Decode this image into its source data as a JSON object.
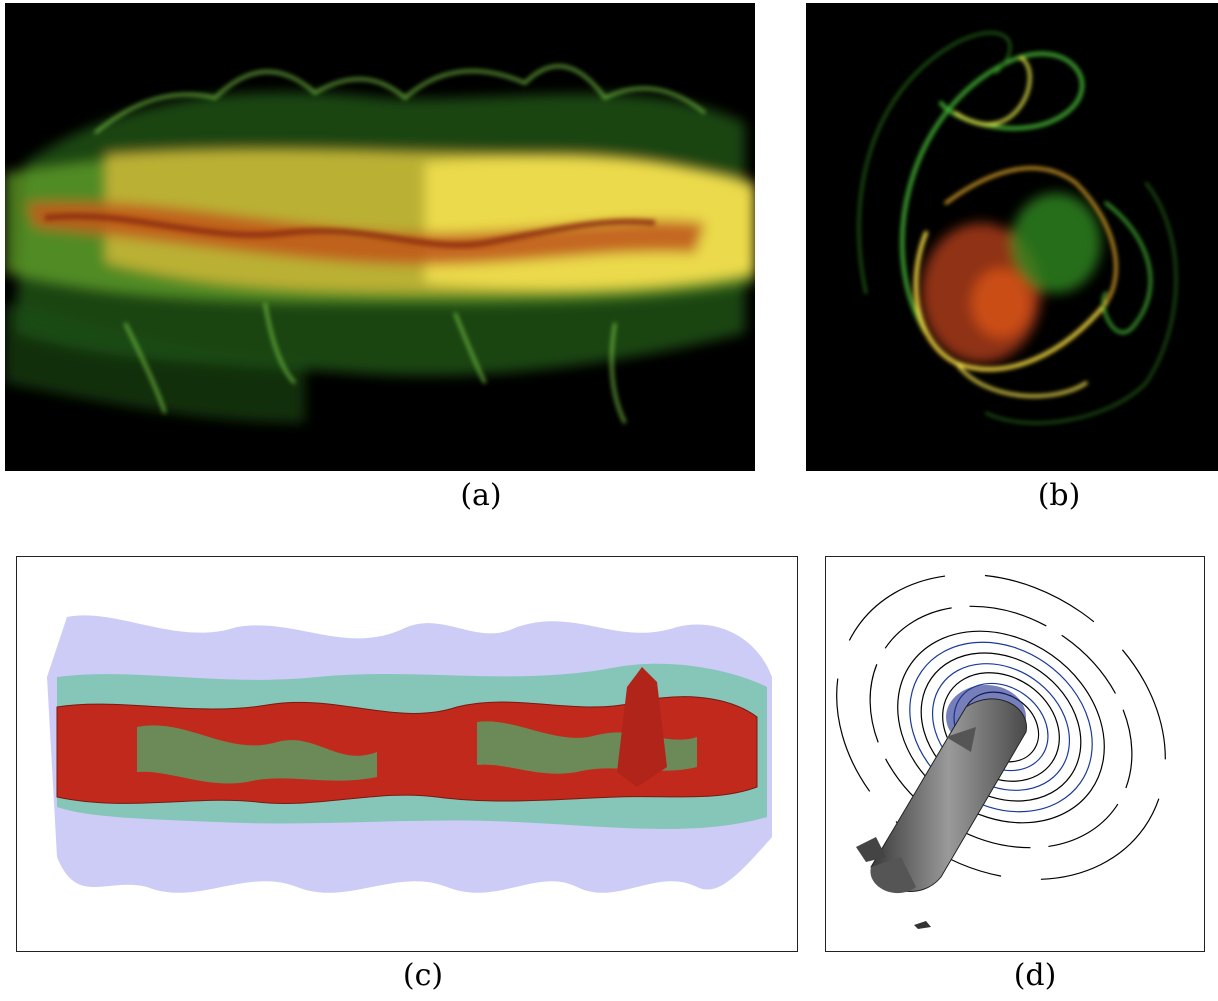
{
  "figure": {
    "panels": [
      {
        "id": "a",
        "label": "(a)",
        "content": "smoke-visualization-photo-side"
      },
      {
        "id": "b",
        "label": "(b)",
        "content": "smoke-visualization-photo-cross-section"
      },
      {
        "id": "c",
        "label": "(c)",
        "content": "3d-isosurface-render"
      },
      {
        "id": "d",
        "label": "(d)",
        "content": "isosurface-with-contour-lines"
      }
    ]
  },
  "colors": {
    "smoke_green": "#3f9a2a",
    "smoke_yellow": "#f2e24a",
    "smoke_orange": "#d0701e",
    "smoke_red": "#b0321a",
    "iso_red": "#c0291c",
    "iso_green": "#3fbf7a",
    "iso_blue": "#8f8fea",
    "iso_grey": "#7a7a7a",
    "contour_blue": "#1a3a9a",
    "contour_black": "#000000"
  }
}
